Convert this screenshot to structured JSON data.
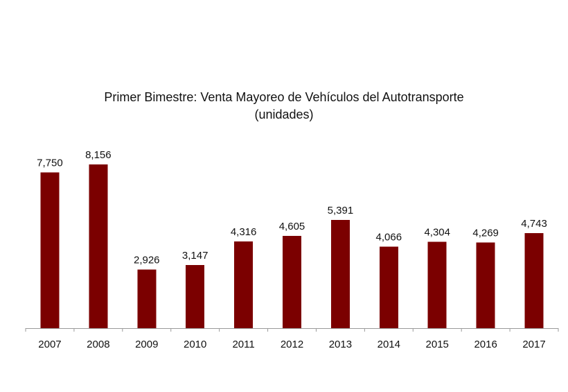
{
  "chart_data": {
    "type": "bar",
    "title": "Primer Bimestre: Venta Mayoreo de Vehículos del Autotransporte",
    "subtitle": "(unidades)",
    "categories": [
      "2007",
      "2008",
      "2009",
      "2010",
      "2011",
      "2012",
      "2013",
      "2014",
      "2015",
      "2016",
      "2017"
    ],
    "values": [
      7750,
      8156,
      2926,
      3147,
      4316,
      4605,
      5391,
      4066,
      4304,
      4269,
      4743
    ],
    "data_labels": [
      "7,750",
      "8,156",
      "2,926",
      "3,147",
      "4,316",
      "4,605",
      "5,391",
      "4,066",
      "4,304",
      "4,269",
      "4,743"
    ],
    "xlabel": "",
    "ylabel": "",
    "ylim": [
      0,
      8156
    ],
    "grid": false,
    "legend": "none",
    "bar_color": "#7b0000",
    "axis_color": "#9a9a9a"
  }
}
